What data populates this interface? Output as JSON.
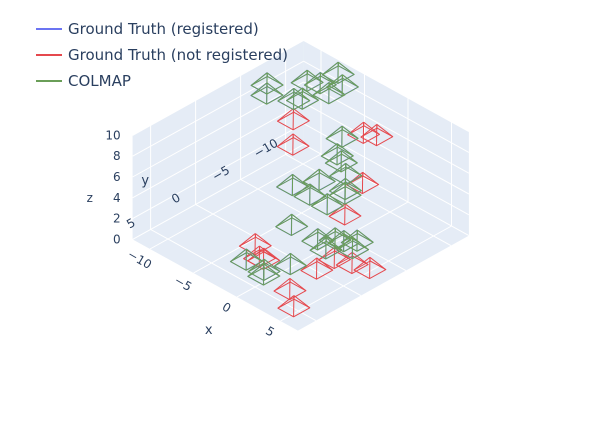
{
  "chart_data": {
    "type": "scatter3d",
    "title": "",
    "legend": {
      "placement": "top-left",
      "entries": [
        {
          "name": "Ground Truth (registered)",
          "color": "#6b74f2"
        },
        {
          "name": "Ground Truth (not registered)",
          "color": "#e5484d"
        },
        {
          "name": "COLMAP",
          "color": "#6a9e58"
        }
      ]
    },
    "axes": {
      "x": {
        "label": "x",
        "ticks": [
          "−10",
          "−5",
          "0",
          "5"
        ],
        "range": [
          -12,
          7
        ]
      },
      "y": {
        "label": "y",
        "ticks": [
          "−10",
          "−5",
          "0",
          "5"
        ],
        "range": [
          -12,
          7
        ]
      },
      "z": {
        "label": "z",
        "ticks": [
          "0",
          "2",
          "4",
          "6",
          "8",
          "10"
        ],
        "range": [
          0,
          10
        ]
      }
    },
    "grid": true,
    "series": [
      {
        "name": "Ground Truth (registered)",
        "cameras": [
          [
            -7,
            -11,
            9.5
          ],
          [
            -6,
            -10.5,
            9
          ],
          [
            -7.5,
            -9.5,
            9
          ],
          [
            -8.5,
            -9,
            9
          ],
          [
            -6.5,
            -9.5,
            8.5
          ],
          [
            -8,
            -8,
            8
          ],
          [
            -10,
            -6,
            9.5
          ],
          [
            -9.5,
            -5.5,
            9
          ],
          [
            -9,
            -8,
            7.5
          ],
          [
            -5,
            -9.5,
            5
          ],
          [
            -4,
            -8,
            4.5
          ],
          [
            -2,
            -7,
            4
          ],
          [
            -1,
            -6,
            3.5
          ],
          [
            0,
            -5,
            4
          ],
          [
            -4,
            -6,
            3
          ],
          [
            -3,
            -4,
            3
          ],
          [
            -1,
            -4,
            3
          ],
          [
            -5,
            -4,
            3
          ],
          [
            -2,
            -1,
            2
          ],
          [
            1,
            -1,
            2
          ],
          [
            3,
            -1,
            3
          ],
          [
            4,
            -1,
            3.2
          ],
          [
            5,
            -1,
            3
          ],
          [
            3.5,
            0.5,
            3
          ],
          [
            2,
            3,
            2
          ],
          [
            0,
            4,
            1
          ],
          [
            -1,
            5,
            2
          ],
          [
            1,
            5,
            1.5
          ],
          [
            -2.5,
            -7,
            5
          ],
          [
            4.5,
            -2,
            3
          ]
        ]
      },
      {
        "name": "Ground Truth (not registered)",
        "cameras": [
          [
            -8,
            -7,
            6.5
          ],
          [
            -7,
            -6,
            5
          ],
          [
            -2,
            -9,
            7
          ],
          [
            -1,
            -9.5,
            7
          ],
          [
            1,
            -6,
            5
          ],
          [
            0,
            -5,
            2
          ],
          [
            -1,
            4,
            3
          ],
          [
            0,
            4.5,
            2.5
          ],
          [
            1,
            5,
            3
          ],
          [
            4,
            2,
            2
          ],
          [
            5,
            1,
            3
          ],
          [
            6,
            0,
            2.5
          ],
          [
            7,
            -1,
            2
          ],
          [
            5.5,
            6,
            1
          ],
          [
            3.5,
            4.5,
            1
          ]
        ]
      },
      {
        "name": "COLMAP",
        "cameras": [
          [
            -7,
            -11,
            9.5
          ],
          [
            -6,
            -10.5,
            9
          ],
          [
            -7.5,
            -9.5,
            9
          ],
          [
            -8.5,
            -9,
            9
          ],
          [
            -6.5,
            -9.5,
            8.5
          ],
          [
            -8,
            -8,
            8
          ],
          [
            -10,
            -6,
            9.5
          ],
          [
            -9.5,
            -5.5,
            9
          ],
          [
            -9,
            -8,
            7.5
          ],
          [
            -5,
            -9.5,
            5
          ],
          [
            -4,
            -8,
            4.5
          ],
          [
            -2,
            -7,
            4
          ],
          [
            -1,
            -6,
            3.5
          ],
          [
            0,
            -5,
            4
          ],
          [
            -4,
            -6,
            3
          ],
          [
            -3,
            -4,
            3
          ],
          [
            -1,
            -4,
            3
          ],
          [
            -5,
            -4,
            3
          ],
          [
            -2,
            -1,
            2
          ],
          [
            1,
            -1,
            2
          ],
          [
            3,
            -1,
            3
          ],
          [
            4,
            -1,
            3.2
          ],
          [
            5,
            -1,
            3
          ],
          [
            3.5,
            0.5,
            3
          ],
          [
            2,
            3,
            2
          ],
          [
            0,
            4,
            1
          ],
          [
            -1,
            5,
            2
          ],
          [
            1,
            5,
            1.5
          ],
          [
            -2.5,
            -7,
            5
          ],
          [
            4.5,
            -2,
            3
          ]
        ]
      }
    ]
  }
}
